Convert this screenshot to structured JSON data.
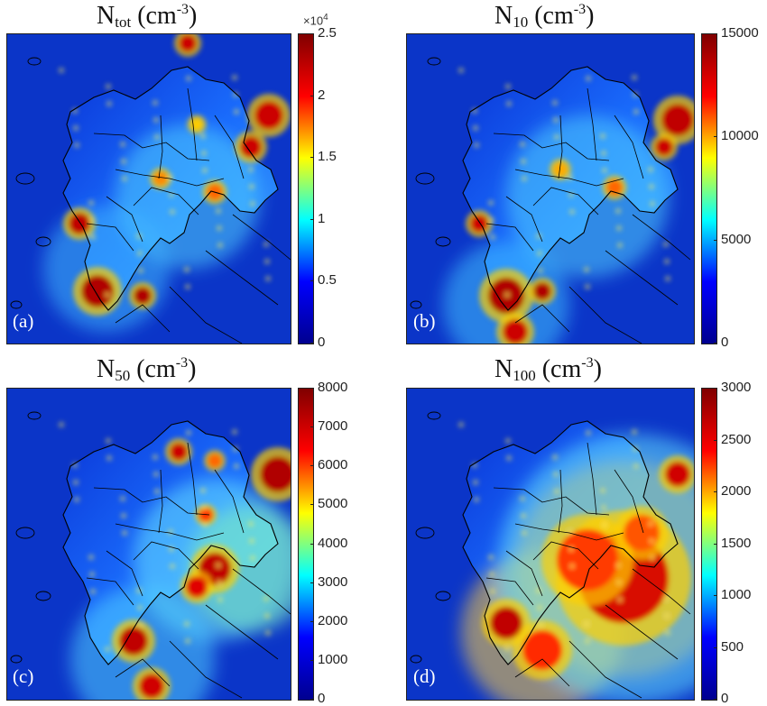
{
  "colormap": [
    "#00008f",
    "#0000ff",
    "#00ffff",
    "#ffff00",
    "#ff0000",
    "#800000"
  ],
  "panels": [
    {
      "id": "a",
      "label": "(a)",
      "title": {
        "base": "N",
        "sub": "tot",
        "unit_pre": " (cm",
        "unit_sup": "-3",
        "unit_post": ")"
      },
      "colorbar": {
        "min": 0,
        "max": 2.5,
        "ticks": [
          "0",
          "0.5",
          "1",
          "1.5",
          "2",
          "2.5"
        ],
        "multiplier_base": "×10",
        "multiplier_exp": "4"
      }
    },
    {
      "id": "b",
      "label": "(b)",
      "title": {
        "base": "N",
        "sub": "10",
        "unit_pre": " (cm",
        "unit_sup": "-3",
        "unit_post": ")"
      },
      "colorbar": {
        "min": 0,
        "max": 15000,
        "ticks": [
          "0",
          "5000",
          "10000",
          "15000"
        ]
      }
    },
    {
      "id": "c",
      "label": "(c)",
      "title": {
        "base": "N",
        "sub": "50",
        "unit_pre": " (cm",
        "unit_sup": "-3",
        "unit_post": ")"
      },
      "colorbar": {
        "min": 0,
        "max": 8000,
        "ticks": [
          "0",
          "1000",
          "2000",
          "3000",
          "4000",
          "5000",
          "6000",
          "7000",
          "8000"
        ]
      }
    },
    {
      "id": "d",
      "label": "(d)",
      "title": {
        "base": "N",
        "sub": "100",
        "unit_pre": " (cm",
        "unit_sup": "-3",
        "unit_post": ")"
      },
      "colorbar": {
        "min": 0,
        "max": 3000,
        "ticks": [
          "0",
          "500",
          "1000",
          "1500",
          "2000",
          "2500",
          "3000"
        ]
      }
    }
  ]
}
